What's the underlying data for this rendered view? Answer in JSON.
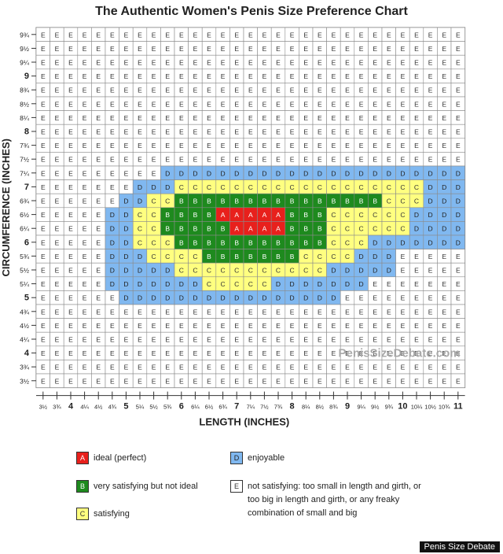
{
  "chart_data": {
    "type": "heatmap",
    "title": "The Authentic Women's Penis Size Preference Chart",
    "xlabel": "LENGTH  (INCHES)",
    "ylabel": "CIRCUMFERENCE (INCHES)",
    "x_ticks": [
      "3½",
      "3¾",
      "4",
      "4¼",
      "4½",
      "4¾",
      "5",
      "5¼",
      "5½",
      "5¾",
      "6",
      "6¼",
      "6½",
      "6¾",
      "7",
      "7¼",
      "7½",
      "7¾",
      "8",
      "8¼",
      "8½",
      "8¾",
      "9",
      "9¼",
      "9½",
      "9¾",
      "10",
      "10¼",
      "10½",
      "10¾",
      "11"
    ],
    "y_ticks": [
      "9¾",
      "9½",
      "9¼",
      "9",
      "8¾",
      "8½",
      "8¼",
      "8",
      "7¾",
      "7½",
      "7¼",
      "7",
      "6¾",
      "6½",
      "6¼",
      "6",
      "5¾",
      "5½",
      "5¼",
      "5",
      "4¾",
      "4½",
      "4¼",
      "4",
      "3¾",
      "3½"
    ],
    "rows": [
      "EEEEEEEEEEEEEEEEEEEEEEEEEEEEEEE",
      "EEEEEEEEEEEEEEEEEEEEEEEEEEEEEEE",
      "EEEEEEEEEEEEEEEEEEEEEEEEEEEEEEE",
      "EEEEEEEEEEEEEEEEEEEEEEEEEEEEEEE",
      "EEEEEEEEEEEEEEEEEEEEEEEEEEEEEEE",
      "EEEEEEEEEEEEEEEEEEEEEEEEEEEEEEE",
      "EEEEEEEEEEEEEEEEEEEEEEEEEEEEEEE",
      "EEEEEEEEEEEEEEEEEEEEEEEEEEEEEEE",
      "EEEEEEEEEEEEEEEEEEEEEEEEEEEEEEE",
      "EEEEEEEEEEEEEEEEEEEEEEEEEEEEEEE",
      "EEEEEEEEEDDDDDDDDDDDDDDDDDDDDDD",
      "EEEEEEEDDDCCCCCCCCCCCCCCCCCCDDD",
      "EEEEEEDDCCBBBBBBBBBBBBBBBCCCDDD",
      "EEEEEDDCCBBBBAAAAABBBCCCCCCDDDD",
      "EEEEEDDCCBBBBBAAAABBBCCCCCCDDDD",
      "EEEEEDDCCCBBBBBBBBBBBCCCDDDDDDD",
      "EEEEEDDDCCCCBBBBBBBCCCCDDDEEEEE",
      "EEEEEDDDDDCCCCCCCCCCCDDDDDEEEEE",
      "EEEEEDDDDDDDCCCCCDDDDDDDEEEEEEE",
      "EEEEEEDDDDDDDDDDDDDDDDEEEEEEEEE",
      "EEEEEEEEEEEEEEEEEEEEEEEEEEEEEEE",
      "EEEEEEEEEEEEEEEEEEEEEEEEEEEEEEE",
      "EEEEEEEEEEEEEEEEEEEEEEEEEEEEEEE",
      "EEEEEEEEEEEEEEEEEEEEEEEEEEEEEEE",
      "EEEEEEEEEEEEEEEEEEEEEEEEEEEEEEE",
      "EEEEEEEEEEEEEEEEEEEEEEEEEEEEEEE"
    ],
    "categories": {
      "A": {
        "label": "ideal (perfect)",
        "color": "#e8201c",
        "text_color": "#ffffff"
      },
      "B": {
        "label": "very satisfying but not ideal",
        "color": "#1e8a1e",
        "text_color": "#ffffff"
      },
      "C": {
        "label": "satisfying",
        "color": "#ffff80",
        "text_color": "#333333"
      },
      "D": {
        "label": "enjoyable",
        "color": "#80b8f0",
        "text_color": "#222222"
      },
      "E": {
        "label": "not satisfying: too small in length and girth, or too big in length and girth, or any freaky combination of small and big",
        "color": "#ffffff",
        "text_color": "#333333"
      }
    },
    "watermark": "PenisSizeDebate.com",
    "grid": true
  },
  "legend": [
    {
      "letter": "A",
      "label": "ideal (perfect)",
      "color": "#e8201c",
      "text_color": "#ffffff"
    },
    {
      "letter": "D",
      "label": "enjoyable",
      "color": "#80b8f0",
      "text_color": "#222222"
    },
    {
      "letter": "B",
      "label": "very satisfying but not ideal",
      "color": "#1e8a1e",
      "text_color": "#ffffff"
    },
    {
      "letter": "E",
      "label": "not satisfying: too small in length and girth, or too big in length and girth, or any freaky combination of small and big",
      "color": "#ffffff",
      "text_color": "#333333"
    },
    {
      "letter": "C",
      "label": "satisfying",
      "color": "#ffff80",
      "text_color": "#333333"
    }
  ],
  "credit": "Penis Size Debate"
}
